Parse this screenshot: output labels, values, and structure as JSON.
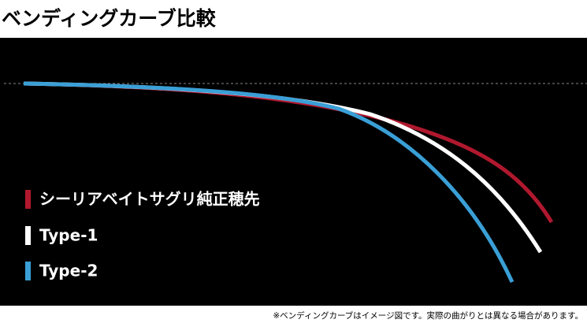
{
  "header": {
    "title": "ベンディングカーブ比較"
  },
  "legend": [
    {
      "label": "シーリアベイトサグリ純正穂先",
      "color": "#b0182e"
    },
    {
      "label": "Type-1",
      "color": "#ffffff"
    },
    {
      "label": "Type-2",
      "color": "#3a9fd6"
    }
  ],
  "footnote": "※ベンディングカーブはイメージ図です。実際の曲がりとは異なる場合があります。"
}
